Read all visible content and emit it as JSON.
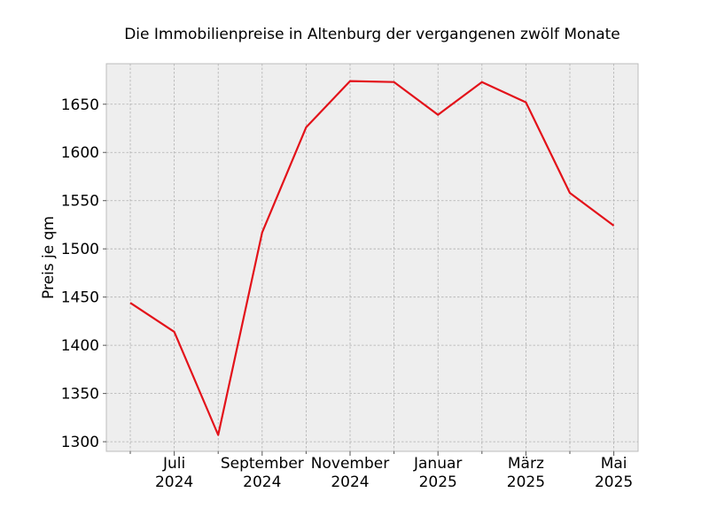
{
  "chart_data": {
    "type": "line",
    "title": "Die Immobilienpreise in Altenburg der vergangenen zwölf Monate",
    "xlabel": "",
    "ylabel": "Preis je qm",
    "grid": true,
    "x": [
      "2024-06",
      "2024-07",
      "2024-08",
      "2024-09",
      "2024-10",
      "2024-11",
      "2024-12",
      "2025-01",
      "2025-02",
      "2025-03",
      "2025-04",
      "2025-05"
    ],
    "series": [
      {
        "values": [
          1444,
          1414,
          1307,
          1517,
          1626,
          1674,
          1673,
          1639,
          1673,
          1652,
          1558,
          1524
        ],
        "color": "#e3121a"
      }
    ],
    "ylim": [
      1290,
      1692
    ],
    "yticks": [
      1300,
      1350,
      1400,
      1450,
      1500,
      1550,
      1600,
      1650
    ],
    "xticks": [
      {
        "x": "2024-07",
        "line1": "Juli",
        "line2": "2024"
      },
      {
        "x": "2024-09",
        "line1": "September",
        "line2": "2024"
      },
      {
        "x": "2024-11",
        "line1": "November",
        "line2": "2024"
      },
      {
        "x": "2025-01",
        "line1": "Januar",
        "line2": "2025"
      },
      {
        "x": "2025-03",
        "line1": "März",
        "line2": "2025"
      },
      {
        "x": "2025-05",
        "line1": "Mai",
        "line2": "2025"
      }
    ],
    "minor_xticks": [
      "2024-06",
      "2024-08",
      "2024-10",
      "2024-12",
      "2025-02",
      "2025-04"
    ]
  }
}
